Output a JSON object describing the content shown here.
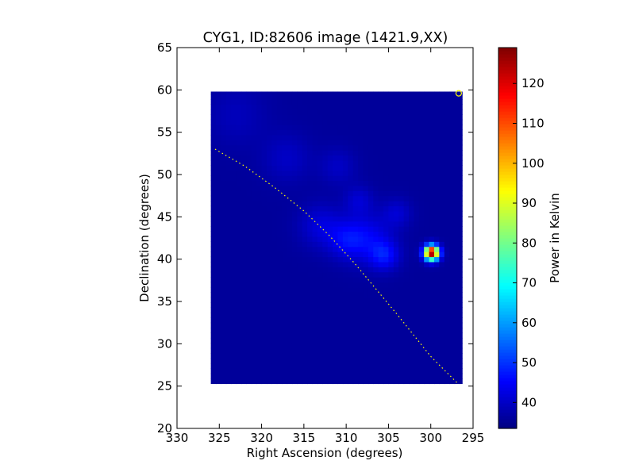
{
  "chart_data": {
    "type": "heatmap",
    "title": "CYG1, ID:82606 image (1421.9,XX)",
    "xlabel": "Right Ascension (degrees)",
    "ylabel": "Declination (degrees)",
    "xlim": [
      330,
      295
    ],
    "ylim": [
      20,
      65
    ],
    "x_ticks": [
      "330",
      "325",
      "320",
      "315",
      "310",
      "305",
      "300",
      "295"
    ],
    "y_ticks": [
      "20",
      "25",
      "30",
      "35",
      "40",
      "45",
      "50",
      "55",
      "60",
      "65"
    ],
    "colorbar": {
      "label": "Power in Kelvin",
      "range": [
        33.5,
        129
      ],
      "ticks": [
        "40",
        "50",
        "60",
        "70",
        "80",
        "90",
        "100",
        "110",
        "120"
      ],
      "colormap": "jet"
    },
    "map_extent": {
      "ra": [
        326,
        296.3
      ],
      "dec": [
        25.3,
        59.8
      ]
    },
    "background_level": 36,
    "sources": [
      {
        "ra": 299.9,
        "dec": 40.8,
        "peak": 129,
        "sigma_deg": 0.6
      },
      {
        "ra": 305.5,
        "dec": 40.5,
        "peak": 46,
        "sigma_deg": 1.2
      },
      {
        "ra": 307.5,
        "dec": 42.5,
        "peak": 44,
        "sigma_deg": 2.0
      },
      {
        "ra": 310.0,
        "dec": 42.3,
        "peak": 43,
        "sigma_deg": 1.5
      },
      {
        "ra": 313.0,
        "dec": 44.0,
        "peak": 42,
        "sigma_deg": 1.8
      },
      {
        "ra": 308.5,
        "dec": 47.0,
        "peak": 41,
        "sigma_deg": 1.2
      },
      {
        "ra": 304.0,
        "dec": 45.5,
        "peak": 41,
        "sigma_deg": 1.2
      },
      {
        "ra": 317.0,
        "dec": 52.0,
        "peak": 40,
        "sigma_deg": 2.0
      },
      {
        "ra": 311.0,
        "dec": 51.0,
        "peak": 40,
        "sigma_deg": 1.5
      },
      {
        "ra": 323.0,
        "dec": 57.0,
        "peak": 39,
        "sigma_deg": 2.5
      }
    ],
    "galactic_plane_curve": {
      "ra": [
        325.5,
        322.0,
        318.5,
        315.0,
        312.0,
        309.0,
        306.5,
        304.0,
        302.0,
        300.0,
        298.0,
        296.8
      ],
      "dec": [
        53.0,
        51.0,
        48.5,
        45.7,
        42.8,
        39.5,
        36.5,
        33.5,
        31.0,
        28.5,
        26.5,
        25.3
      ],
      "color": "#ffff00",
      "style": "dotted"
    },
    "marker": {
      "ra": 296.7,
      "dec": 59.6,
      "color": "#ffff00",
      "shape": "circle"
    },
    "map_edge_blank": {
      "ra_min": 295.8,
      "dec": [
        37.8,
        42.6
      ]
    }
  }
}
